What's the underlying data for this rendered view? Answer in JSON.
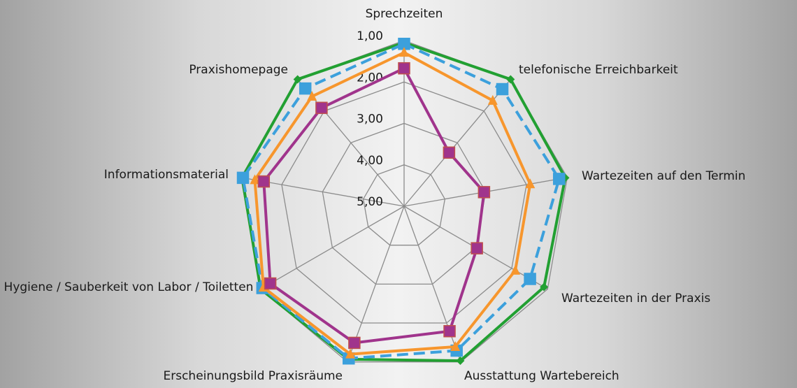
{
  "chart_data": {
    "type": "radar",
    "categories": [
      "Sprechzeiten",
      "telefonische Erreichbarkeit",
      "Wartezeiten auf den Termin",
      "Wartezeiten in der Praxis",
      "Ausstattung Wartebereich",
      "Erscheinungsbild Praxisräume",
      "Hygiene / Sauberkeit von Labor / Toiletten",
      "Informationsmaterial",
      "Praxishomepage"
    ],
    "ylim": [
      5,
      1
    ],
    "yticks": [
      {
        "value": 1,
        "label": "1,00"
      },
      {
        "value": 2,
        "label": "2,00"
      },
      {
        "value": 3,
        "label": "3,00"
      },
      {
        "value": 4,
        "label": "4,00"
      },
      {
        "value": 5,
        "label": "5,00"
      }
    ],
    "grid": true,
    "series": [
      {
        "color": "#22a032",
        "marker": "diamond",
        "values": [
          1.05,
          1.0,
          1.05,
          1.1,
          1.03,
          1.07,
          1.0,
          1.03,
          1.0
        ]
      },
      {
        "color": "#3ca0dc",
        "marker": "square",
        "dashed": true,
        "values": [
          1.08,
          1.31,
          1.2,
          1.49,
          1.29,
          1.09,
          1.05,
          1.05,
          1.29
        ]
      },
      {
        "color": "#f7962d",
        "marker": "triangle",
        "values": [
          1.29,
          1.67,
          1.91,
          1.9,
          1.39,
          1.2,
          1.08,
          1.34,
          1.54
        ]
      },
      {
        "color": "#a0348c",
        "marker": "square",
        "values": [
          1.67,
          3.31,
          3.04,
          2.97,
          1.79,
          1.49,
          1.27,
          1.56,
          1.9
        ]
      }
    ]
  }
}
